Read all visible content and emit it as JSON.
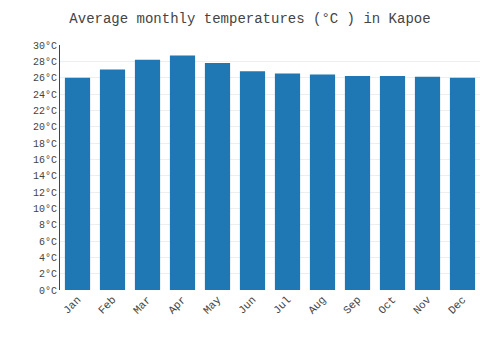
{
  "chart_data": {
    "type": "bar",
    "title": "Average monthly temperatures (°C ) in Kapoe",
    "categories": [
      "Jan",
      "Feb",
      "Mar",
      "Apr",
      "May",
      "Jun",
      "Jul",
      "Aug",
      "Sep",
      "Oct",
      "Nov",
      "Dec"
    ],
    "values": [
      26.0,
      27.0,
      28.2,
      28.7,
      27.8,
      26.8,
      26.5,
      26.4,
      26.2,
      26.2,
      26.1,
      26.0
    ],
    "ylim": [
      0,
      30
    ],
    "yticks": [
      {
        "value": 0,
        "label": "0°C"
      },
      {
        "value": 2,
        "label": "2°C"
      },
      {
        "value": 4,
        "label": "4°C"
      },
      {
        "value": 6,
        "label": "6°C"
      },
      {
        "value": 8,
        "label": "8°C"
      },
      {
        "value": 10,
        "label": "10°C"
      },
      {
        "value": 12,
        "label": "12°C"
      },
      {
        "value": 14,
        "label": "14°C"
      },
      {
        "value": 16,
        "label": "16°C"
      },
      {
        "value": 18,
        "label": "18°C"
      },
      {
        "value": 20,
        "label": "20°C"
      },
      {
        "value": 22,
        "label": "22°C"
      },
      {
        "value": 24,
        "label": "24°C"
      },
      {
        "value": 26,
        "label": "26°C"
      },
      {
        "value": 28,
        "label": "28°C"
      },
      {
        "value": 30,
        "label": "30°C"
      }
    ],
    "grid": true
  }
}
